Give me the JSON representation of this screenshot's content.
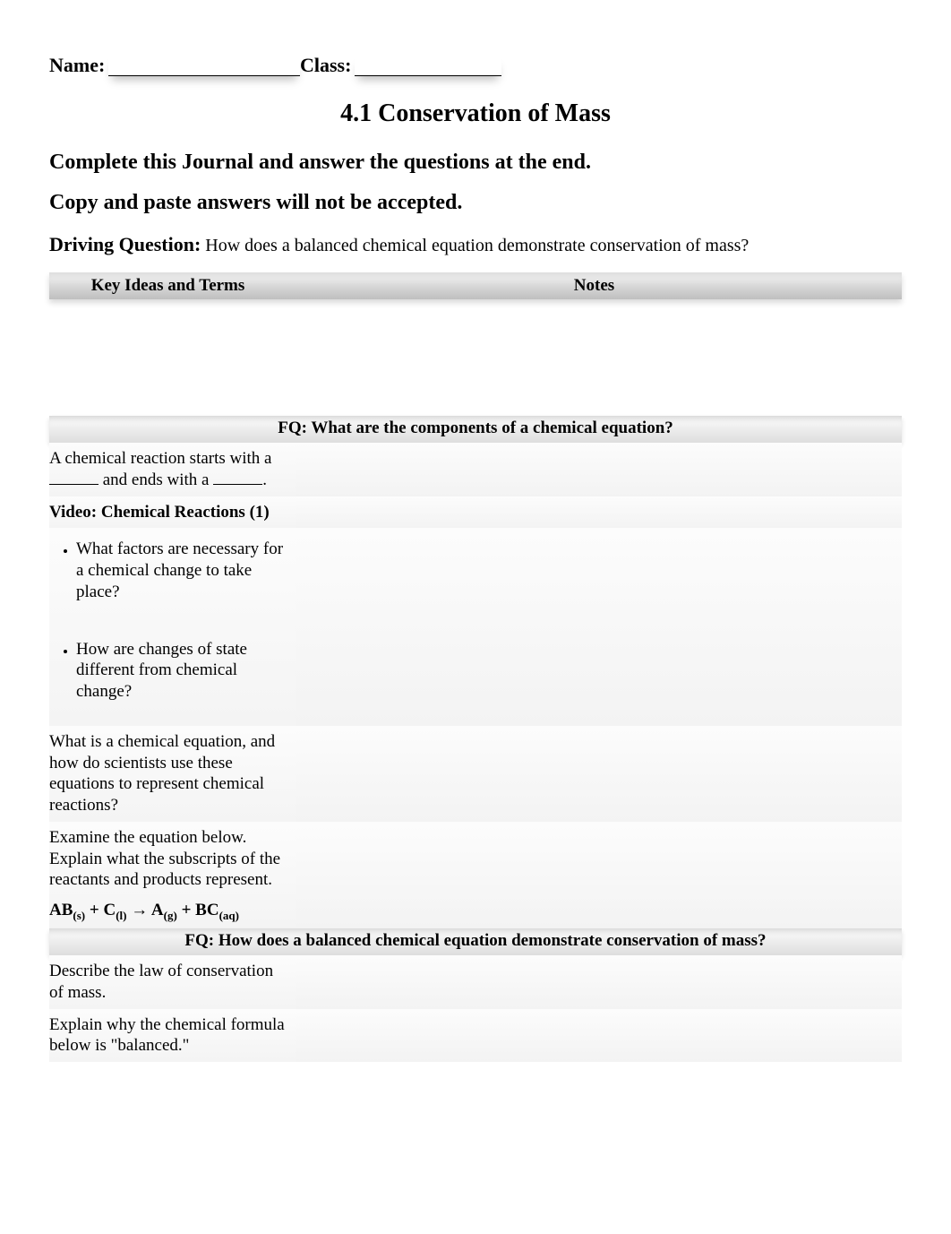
{
  "header": {
    "name_label": "Name:",
    "class_label": "Class:"
  },
  "title": "4.1   Conservation of Mass",
  "instruction1": "Complete this Journal and answer the questions at the end.",
  "instruction2": "Copy and paste answers will not be accepted.",
  "dq": {
    "label": "Driving Question:",
    "text": " How does a balanced chemical equation demonstrate conservation of mass?"
  },
  "columns": {
    "left": "Key Ideas and Terms",
    "right": "Notes"
  },
  "fq1": "FQ: What are the components of a chemical equation?",
  "row_reactant": {
    "pre": "A chemical reaction starts with a ",
    "mid": " and ends with a ",
    "post": "."
  },
  "video_heading": "Video: Chemical Reactions (1)",
  "bullet1": "What factors are necessary for a chemical change to take place?",
  "bullet2": "How are changes of state different from chemical change?",
  "row_chem_eq": "What is a chemical equation, and how do scientists use these equations to represent chemical reactions?",
  "row_examine": "Examine the equation below. Explain what the subscripts of the reactants and products represent.",
  "equation": {
    "t1": "AB",
    "s1": "(s)",
    "t2": " + C",
    "s2": "(l)",
    "t3": "  →  A",
    "s3": "(g)",
    "t4": " + BC",
    "s4": "(aq)"
  },
  "fq2": "FQ: How does a balanced chemical equation demonstrate conservation of mass?",
  "row_law": "Describe the law of conservation of mass.",
  "row_balanced": "Explain why the chemical formula below is \"balanced.\"",
  "colors": {
    "text": "#000000",
    "background": "#ffffff",
    "header_grad_top": "#f8f8f8",
    "header_grad_bottom": "#bfbfbf",
    "row_bg": "#f5f5f5"
  }
}
